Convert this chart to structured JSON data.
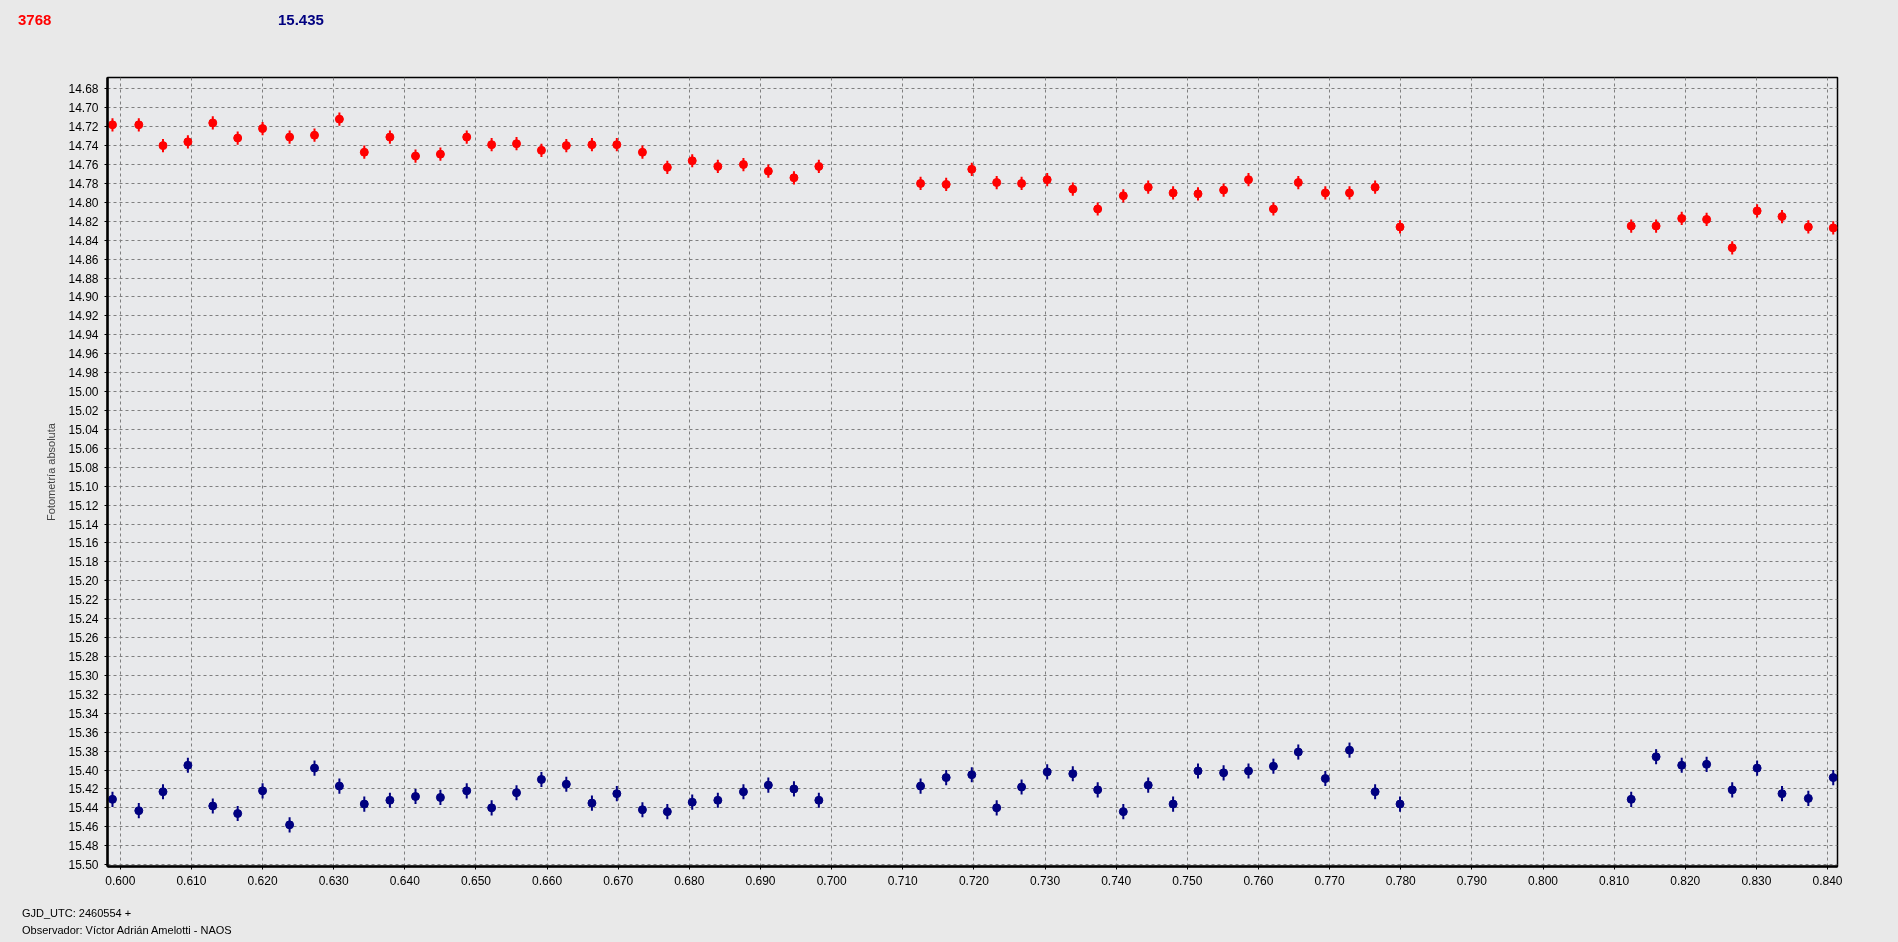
{
  "chart_data": {
    "type": "scatter",
    "ylabel": "Fotometría absoluta",
    "xlabel": "GJD_UTC: 2460554 +",
    "annotations": [
      "Observador: Víctor Adrián Amelotti - NAOS"
    ],
    "x": [
      0.5989,
      0.6026,
      0.606,
      0.6095,
      0.613,
      0.6165,
      0.62,
      0.6238,
      0.6273,
      0.6308,
      0.6343,
      0.6379,
      0.6415,
      0.645,
      0.6487,
      0.6522,
      0.6557,
      0.6592,
      0.6627,
      0.6663,
      0.6698,
      0.6734,
      0.6769,
      0.6804,
      0.684,
      0.6876,
      0.6911,
      0.6947,
      0.6982,
      0.7125,
      0.7161,
      0.7197,
      0.7232,
      0.7267,
      0.7303,
      0.7339,
      0.7374,
      0.741,
      0.7445,
      0.748,
      0.7515,
      0.7551,
      0.7586,
      0.7621,
      0.7656,
      0.7694,
      0.7728,
      0.7764,
      0.7799,
      0.8124,
      0.8159,
      0.8195,
      0.823,
      0.8266,
      0.8301,
      0.8336,
      0.8373,
      0.8408
    ],
    "series": [
      {
        "name": "3768",
        "color": "#ff0000",
        "values": [
          14.718,
          14.718,
          14.74,
          14.736,
          14.716,
          14.732,
          14.722,
          14.731,
          14.729,
          14.712,
          14.747,
          14.731,
          14.751,
          14.749,
          14.731,
          14.739,
          14.738,
          14.745,
          14.74,
          14.739,
          14.739,
          14.747,
          14.763,
          14.756,
          14.762,
          14.76,
          14.767,
          14.774,
          14.762,
          14.78,
          14.781,
          14.765,
          14.779,
          14.78,
          14.776,
          14.786,
          14.807,
          14.793,
          14.784,
          14.79,
          14.791,
          14.787,
          14.776,
          14.807,
          14.779,
          14.79,
          14.79,
          14.784,
          14.826,
          14.825,
          14.825,
          14.817,
          14.818,
          14.848,
          14.809,
          14.815,
          14.826,
          14.827
        ],
        "errors": [
          0.007,
          0.007,
          0.007,
          0.007,
          0.007,
          0.007,
          0.007,
          0.007,
          0.007,
          0.007,
          0.007,
          0.007,
          0.007,
          0.007,
          0.007,
          0.007,
          0.007,
          0.007,
          0.007,
          0.007,
          0.007,
          0.007,
          0.007,
          0.007,
          0.007,
          0.007,
          0.007,
          0.007,
          0.007,
          0.007,
          0.007,
          0.007,
          0.007,
          0.007,
          0.007,
          0.007,
          0.007,
          0.007,
          0.007,
          0.007,
          0.007,
          0.007,
          0.007,
          0.007,
          0.007,
          0.007,
          0.007,
          0.007,
          0.007,
          0.007,
          0.007,
          0.007,
          0.007,
          0.007,
          0.007,
          0.007,
          0.007,
          0.007
        ]
      },
      {
        "name": "15.435",
        "color": "#000080",
        "values": [
          15.431,
          15.443,
          15.423,
          15.395,
          15.438,
          15.446,
          15.422,
          15.458,
          15.398,
          15.417,
          15.436,
          15.432,
          15.428,
          15.429,
          15.422,
          15.44,
          15.424,
          15.41,
          15.415,
          15.435,
          15.425,
          15.442,
          15.444,
          15.434,
          15.432,
          15.423,
          15.416,
          15.42,
          15.432,
          15.417,
          15.408,
          15.405,
          15.44,
          15.418,
          15.402,
          15.404,
          15.421,
          15.444,
          15.416,
          15.436,
          15.401,
          15.403,
          15.401,
          15.396,
          15.381,
          15.409,
          15.379,
          15.423,
          15.436,
          15.431,
          15.386,
          15.395,
          15.394,
          15.421,
          15.398,
          15.425,
          15.43,
          15.408
        ],
        "errors": [
          0.008,
          0.008,
          0.008,
          0.008,
          0.008,
          0.008,
          0.008,
          0.008,
          0.008,
          0.008,
          0.008,
          0.008,
          0.008,
          0.008,
          0.008,
          0.008,
          0.008,
          0.008,
          0.008,
          0.008,
          0.008,
          0.008,
          0.008,
          0.008,
          0.008,
          0.008,
          0.008,
          0.008,
          0.008,
          0.008,
          0.008,
          0.008,
          0.008,
          0.008,
          0.008,
          0.008,
          0.008,
          0.008,
          0.008,
          0.008,
          0.008,
          0.008,
          0.008,
          0.008,
          0.008,
          0.008,
          0.008,
          0.008,
          0.008,
          0.008,
          0.008,
          0.008,
          0.008,
          0.008,
          0.008,
          0.008,
          0.008,
          0.008
        ]
      }
    ],
    "xlim": [
      0.5982,
      0.8414
    ],
    "ylim": [
      15.502,
      14.668
    ],
    "xticks": [
      {
        "value": 0.6,
        "label": "0.600"
      },
      {
        "value": 0.61,
        "label": "0.610"
      },
      {
        "value": 0.62,
        "label": "0.620"
      },
      {
        "value": 0.63,
        "label": "0.630"
      },
      {
        "value": 0.64,
        "label": "0.640"
      },
      {
        "value": 0.65,
        "label": "0.650"
      },
      {
        "value": 0.66,
        "label": "0.660"
      },
      {
        "value": 0.67,
        "label": "0.670"
      },
      {
        "value": 0.68,
        "label": "0.680"
      },
      {
        "value": 0.69,
        "label": "0.690"
      },
      {
        "value": 0.7,
        "label": "0.700"
      },
      {
        "value": 0.71,
        "label": "0.710"
      },
      {
        "value": 0.72,
        "label": "0.720"
      },
      {
        "value": 0.73,
        "label": "0.730"
      },
      {
        "value": 0.74,
        "label": "0.740"
      },
      {
        "value": 0.75,
        "label": "0.750"
      },
      {
        "value": 0.76,
        "label": "0.760"
      },
      {
        "value": 0.77,
        "label": "0.770"
      },
      {
        "value": 0.78,
        "label": "0.780"
      },
      {
        "value": 0.79,
        "label": "0.790"
      },
      {
        "value": 0.8,
        "label": "0.800"
      },
      {
        "value": 0.81,
        "label": "0.810"
      },
      {
        "value": 0.82,
        "label": "0.820"
      },
      {
        "value": 0.83,
        "label": "0.830"
      },
      {
        "value": 0.84,
        "label": "0.840"
      }
    ],
    "yticks": [
      14.68,
      {
        "value": 14.7,
        "label": "14.70"
      },
      14.72,
      14.74,
      14.76,
      14.78,
      {
        "value": 14.8,
        "label": "14.80"
      },
      14.82,
      14.84,
      14.86,
      14.88,
      {
        "value": 14.9,
        "label": "14.90"
      },
      14.92,
      14.94,
      14.96,
      14.98,
      {
        "value": 15,
        "label": "15.00"
      },
      15.02,
      15.04,
      15.06,
      15.08,
      {
        "value": 15.1,
        "label": "15.10"
      },
      15.12,
      15.14,
      15.16,
      15.18,
      {
        "value": 15.2,
        "label": "15.20"
      },
      15.22,
      15.24,
      15.26,
      15.28,
      {
        "value": 15.3,
        "label": "15.30"
      },
      15.32,
      15.34,
      15.36,
      15.38,
      {
        "value": 15.4,
        "label": "15.40"
      },
      15.42,
      15.44,
      15.46,
      15.48,
      {
        "value": 15.5,
        "label": "15.50"
      }
    ],
    "grid": true,
    "marker": "circle"
  }
}
